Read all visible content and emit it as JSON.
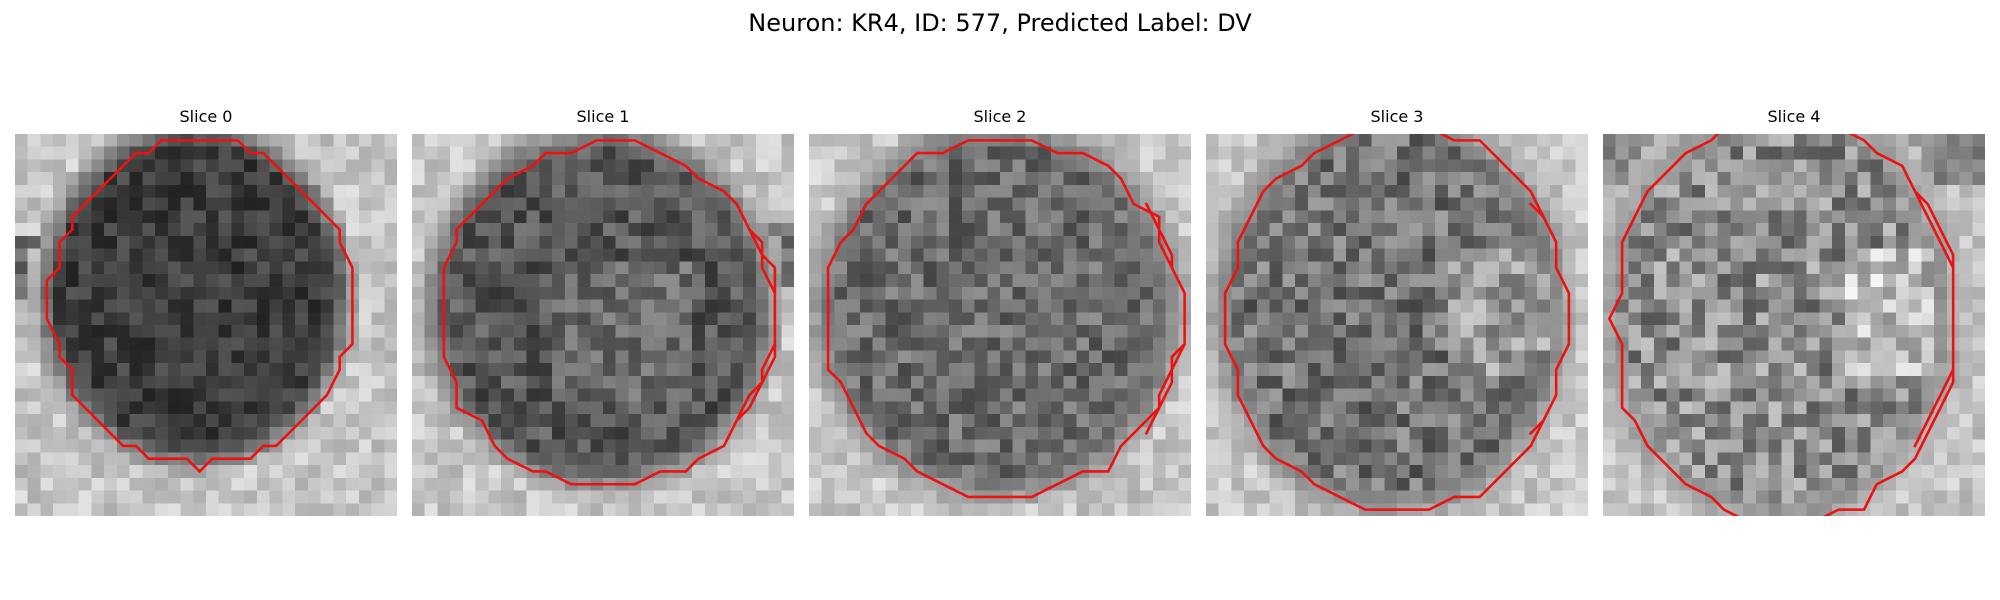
{
  "figure": {
    "title": "Neuron: KR4, ID: 577, Predicted Label: DV"
  },
  "style": {
    "contour_color": "#ee1111",
    "colormap": "grayscale"
  },
  "panels": [
    {
      "label": "Slice 0"
    },
    {
      "label": "Slice 1"
    },
    {
      "label": "Slice 2"
    },
    {
      "label": "Slice 3"
    },
    {
      "label": "Slice 4"
    }
  ]
}
